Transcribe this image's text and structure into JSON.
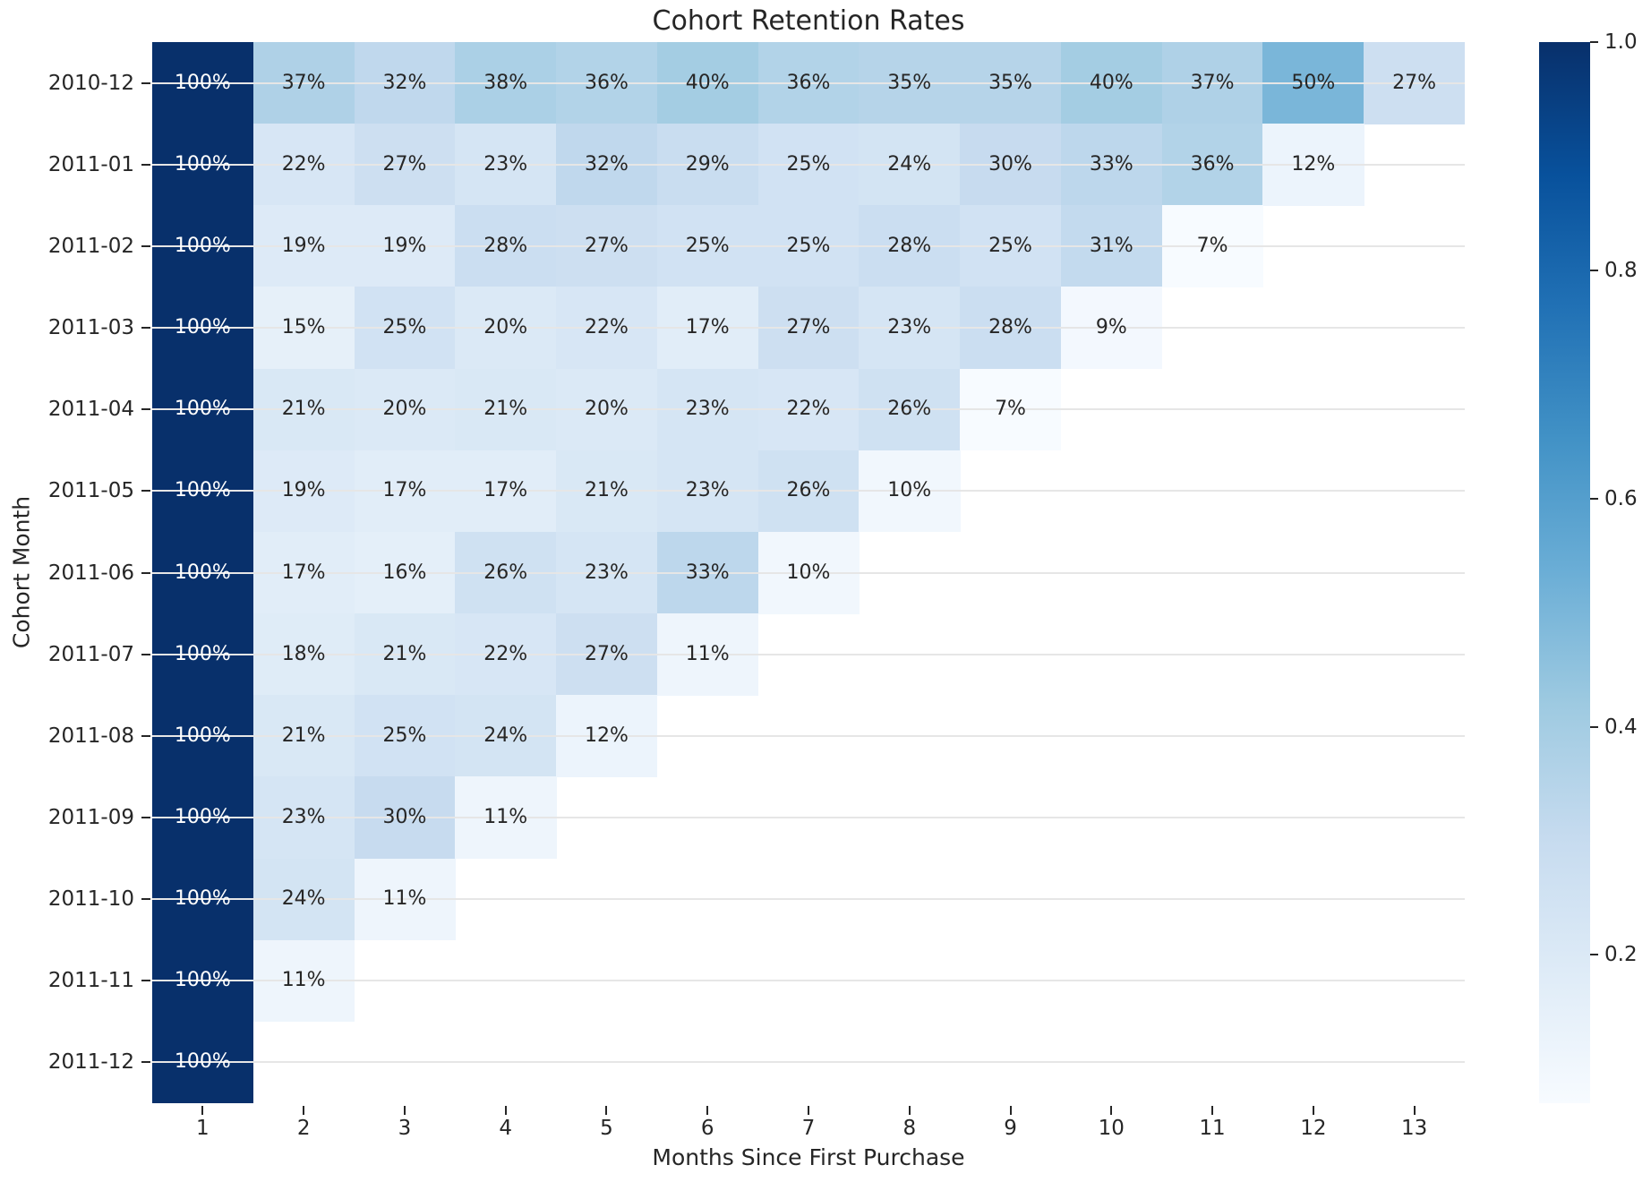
{
  "chart_data": {
    "type": "heatmap",
    "title": "Cohort Retention Rates",
    "xlabel": "Months Since First Purchase",
    "ylabel": "Cohort Month",
    "x_categories": [
      "1",
      "2",
      "3",
      "4",
      "5",
      "6",
      "7",
      "8",
      "9",
      "10",
      "11",
      "12",
      "13"
    ],
    "y_categories": [
      "2010-12",
      "2011-01",
      "2011-02",
      "2011-03",
      "2011-04",
      "2011-05",
      "2011-06",
      "2011-07",
      "2011-08",
      "2011-09",
      "2011-10",
      "2011-11",
      "2011-12"
    ],
    "values_percent": [
      [
        100,
        37,
        32,
        38,
        36,
        40,
        36,
        35,
        35,
        40,
        37,
        50,
        27
      ],
      [
        100,
        22,
        27,
        23,
        32,
        29,
        25,
        24,
        30,
        33,
        36,
        12
      ],
      [
        100,
        19,
        19,
        28,
        27,
        25,
        25,
        28,
        25,
        31,
        7
      ],
      [
        100,
        15,
        25,
        20,
        22,
        17,
        27,
        23,
        28,
        9
      ],
      [
        100,
        21,
        20,
        21,
        20,
        23,
        22,
        26,
        7
      ],
      [
        100,
        19,
        17,
        17,
        21,
        23,
        26,
        10
      ],
      [
        100,
        17,
        16,
        26,
        23,
        33,
        10
      ],
      [
        100,
        18,
        21,
        22,
        27,
        11
      ],
      [
        100,
        21,
        25,
        24,
        12
      ],
      [
        100,
        23,
        30,
        11
      ],
      [
        100,
        24,
        11
      ],
      [
        100,
        11
      ],
      [
        100
      ]
    ],
    "cell_label_suffix": "%",
    "colormap": "Blues",
    "vmin": 0.07,
    "vmax": 1.0,
    "colorbar_ticks": [
      1.0,
      0.8,
      0.6,
      0.4,
      0.2
    ],
    "legend_position": "right",
    "grid": "horizontal-only",
    "colors": {
      "cmap_min": "#f7fbff",
      "cmap_max": "#08306b",
      "gridline": "#e6e6e6",
      "text_dark": "#262626",
      "text_light": "#ffffff"
    }
  }
}
